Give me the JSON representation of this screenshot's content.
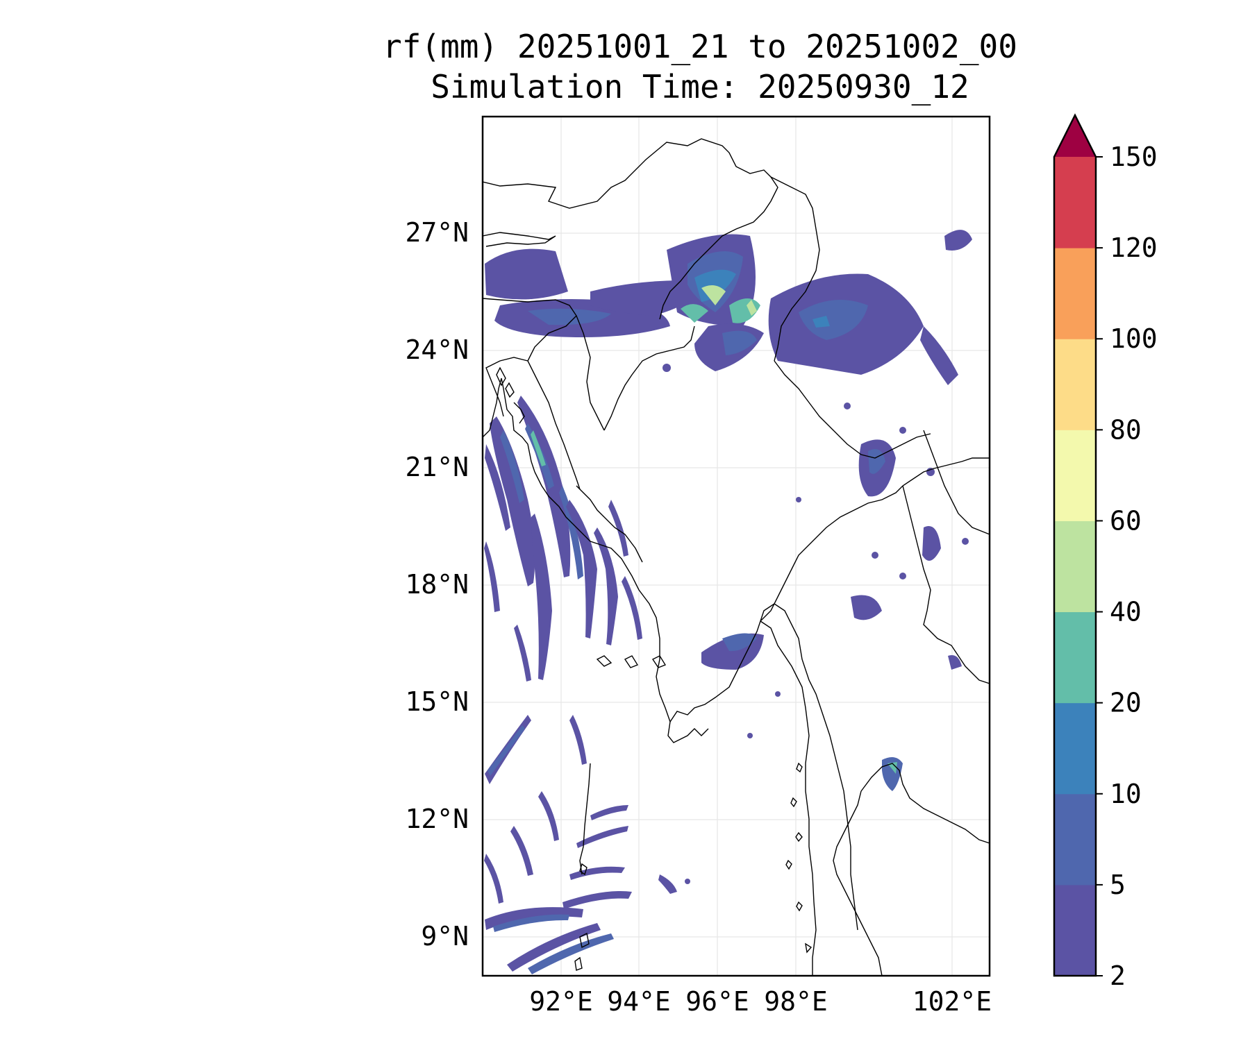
{
  "title": {
    "line1": "rf(mm) 20251001_21 to 20251002_00",
    "line2": "Simulation Time: 20250930_12"
  },
  "map": {
    "lat_labels": [
      "27°N",
      "24°N",
      "21°N",
      "18°N",
      "15°N",
      "12°N",
      "9°N"
    ],
    "lon_labels": [
      "92°E",
      "94°E",
      "96°E",
      "98°E",
      "102°E"
    ],
    "grid": true,
    "extent": {
      "lon": [
        90,
        103
      ],
      "lat": [
        8,
        30
      ]
    }
  },
  "colorbar": {
    "extend": "max",
    "tick_labels": [
      "2",
      "5",
      "10",
      "20",
      "40",
      "60",
      "80",
      "100",
      "120",
      "150"
    ],
    "colors": [
      "#5b53a4",
      "#4f67ae",
      "#3c82bb",
      "#63bea9",
      "#bde3a0",
      "#f3f9ad",
      "#fddc88",
      "#f9a05a",
      "#d53e4f",
      "#9e0142"
    ]
  }
}
